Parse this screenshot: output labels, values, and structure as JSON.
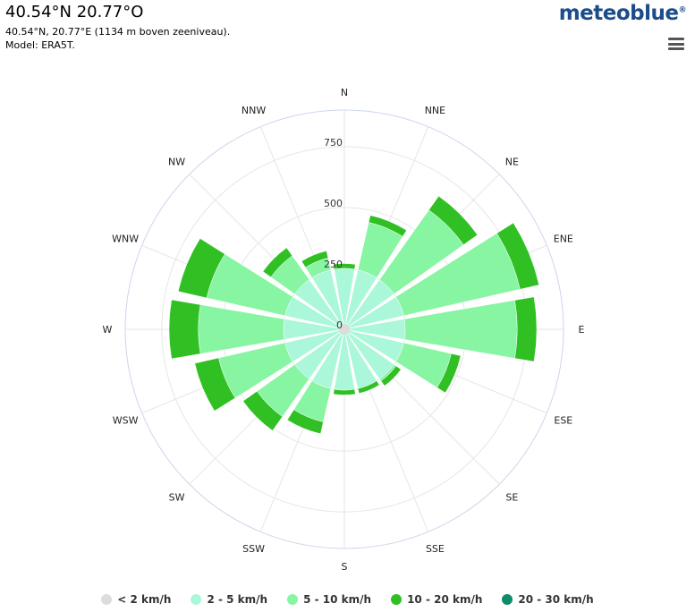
{
  "header": {
    "title": "40.54°N 20.77°O",
    "subtitle_line1": "40.54°N, 20.77°E (1134 m boven zeeniveau).",
    "subtitle_line2": "Model: ERA5T.",
    "logo_text": "meteoblue",
    "logo_mark": "®",
    "logo_color": "#1c4d8a"
  },
  "chart_data": {
    "type": "windrose",
    "directions": [
      "N",
      "NNE",
      "NE",
      "ENE",
      "E",
      "ESE",
      "SE",
      "SSE",
      "S",
      "SSW",
      "SW",
      "WSW",
      "W",
      "WNW",
      "NW",
      "NNW"
    ],
    "radial_ticks": [
      0,
      250,
      500,
      750
    ],
    "radial_max": 900,
    "series": [
      {
        "name": "< 2 km/h",
        "color": "#dcdcdc",
        "values": [
          0,
          0,
          0,
          0,
          0,
          0,
          0,
          0,
          0,
          0,
          0,
          0,
          0,
          0,
          0,
          0
        ]
      },
      {
        "name": "2 - 5 km/h",
        "color": "#aaf7d9",
        "values": [
          250,
          250,
          250,
          250,
          250,
          250,
          250,
          250,
          250,
          250,
          250,
          250,
          250,
          250,
          250,
          250
        ]
      },
      {
        "name": "5 - 10 km/h",
        "color": "#88f5a2",
        "values": [
          0,
          200,
          350,
          490,
          460,
          200,
          10,
          0,
          0,
          140,
          190,
          280,
          350,
          330,
          120,
          50
        ]
      },
      {
        "name": "10 - 20 km/h",
        "color": "#30c024",
        "values": [
          20,
          30,
          70,
          80,
          80,
          40,
          25,
          20,
          20,
          50,
          70,
          100,
          120,
          120,
          40,
          30
        ]
      },
      {
        "name": "20 - 30 km/h",
        "color": "#118c69",
        "values": [
          0,
          0,
          0,
          0,
          0,
          0,
          0,
          0,
          0,
          0,
          0,
          0,
          0,
          0,
          0,
          0
        ]
      }
    ]
  },
  "legend": [
    {
      "label": "< 2 km/h",
      "color": "#dcdcdc"
    },
    {
      "label": "2 - 5 km/h",
      "color": "#aaf7d9"
    },
    {
      "label": "5 - 10 km/h",
      "color": "#88f5a2"
    },
    {
      "label": "10 - 20 km/h",
      "color": "#30c024"
    },
    {
      "label": "20 - 30 km/h",
      "color": "#118c69"
    }
  ]
}
